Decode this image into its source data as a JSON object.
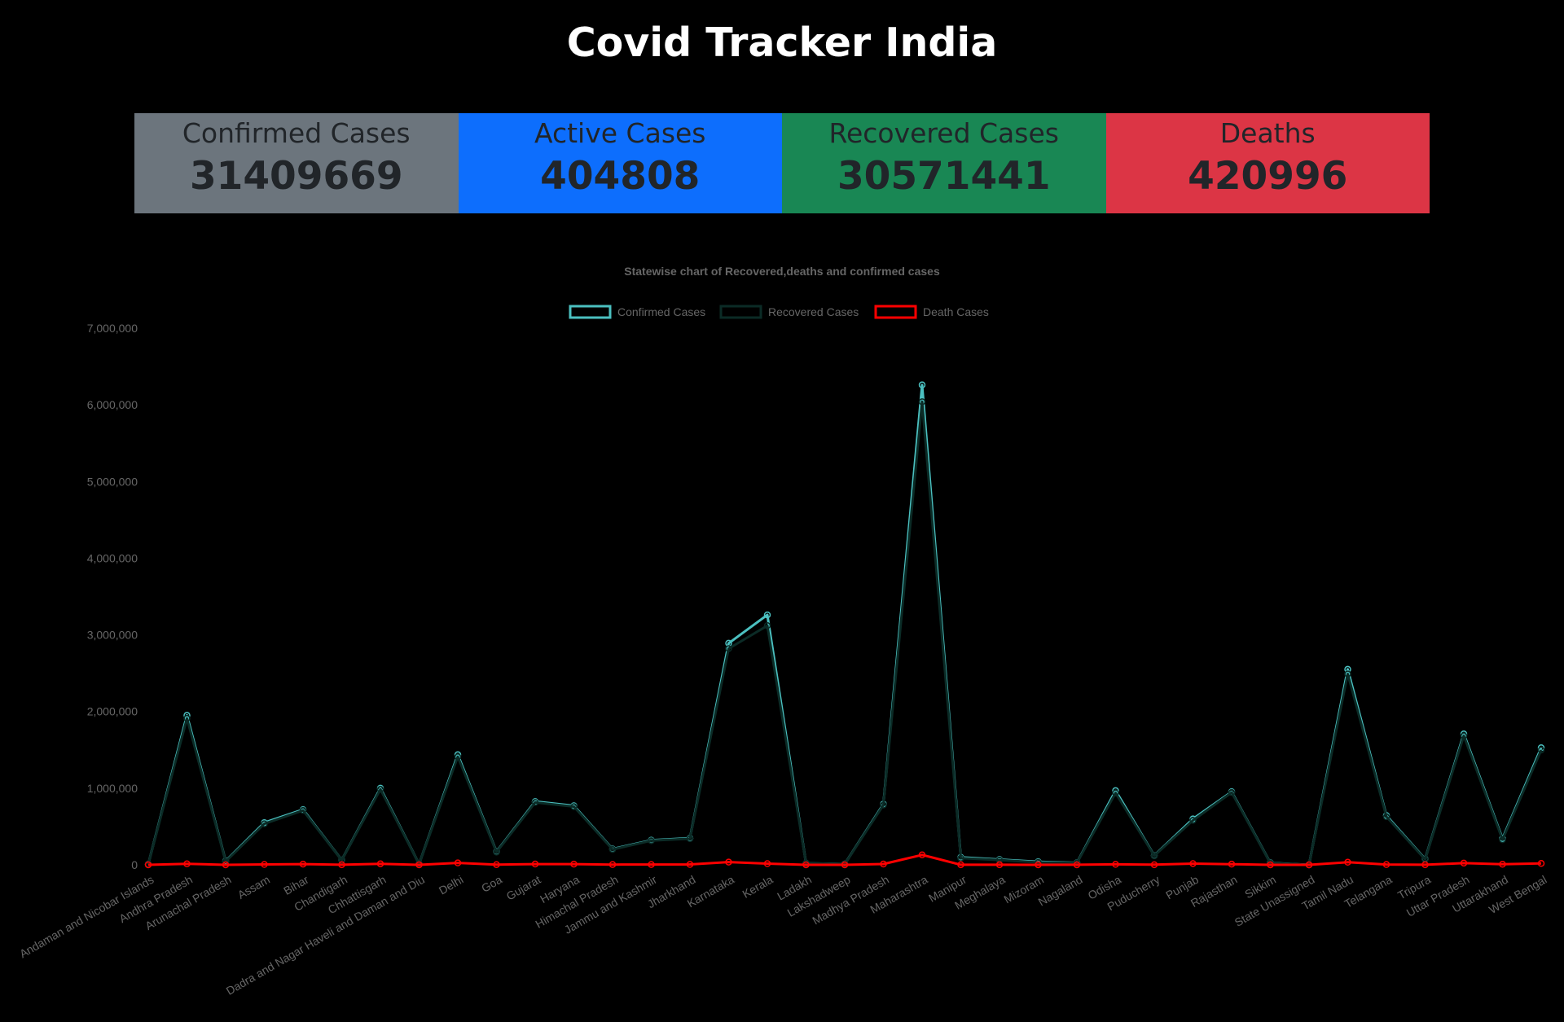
{
  "page_title": "Covid Tracker India",
  "cards": [
    {
      "label": "Confirmed Cases",
      "value": "31409669",
      "color": "#6c757d"
    },
    {
      "label": "Active Cases",
      "value": "404808",
      "color": "#0d6efd"
    },
    {
      "label": "Recovered Cases",
      "value": "30571441",
      "color": "#198754"
    },
    {
      "label": "Deaths",
      "value": "420996",
      "color": "#dc3545"
    }
  ],
  "chart_data": {
    "type": "line",
    "title": "Statewise chart of Recovered,deaths and confirmed cases",
    "legend_position": "top",
    "grid": false,
    "ylim": [
      0,
      7000000
    ],
    "yticks": [
      "0",
      "1,000,000",
      "2,000,000",
      "3,000,000",
      "4,000,000",
      "5,000,000",
      "6,000,000",
      "7,000,000"
    ],
    "categories": [
      "Andaman and Nicobar Islands",
      "Andhra Pradesh",
      "Arunachal Pradesh",
      "Assam",
      "Bihar",
      "Chandigarh",
      "Chhattisgarh",
      "Dadra and Nagar Haveli and Daman and Diu",
      "Delhi",
      "Goa",
      "Gujarat",
      "Haryana",
      "Himachal Pradesh",
      "Jammu and Kashmir",
      "Jharkhand",
      "Karnataka",
      "Kerala",
      "Ladakh",
      "Lakshadweep",
      "Madhya Pradesh",
      "Maharashtra",
      "Manipur",
      "Meghalaya",
      "Mizoram",
      "Nagaland",
      "Odisha",
      "Puducherry",
      "Punjab",
      "Rajasthan",
      "Sikkim",
      "State Unassigned",
      "Tamil Nadu",
      "Telangana",
      "Tripura",
      "Uttar Pradesh",
      "Uttarakhand",
      "West Bengal"
    ],
    "series": [
      {
        "name": "Confirmed Cases",
        "color": "#4bc0c0",
        "values": [
          7500,
          1950000,
          50000,
          550000,
          720000,
          62000,
          1000000,
          10600,
          1436000,
          171000,
          825000,
          770000,
          206000,
          321000,
          347000,
          2890000,
          3260000,
          20300,
          10100,
          792000,
          6260000,
          98000,
          69000,
          40000,
          27000,
          968000,
          121000,
          599000,
          953000,
          26000,
          0,
          2550000,
          642000,
          75000,
          1708000,
          342000,
          1527000
        ]
      },
      {
        "name": "Recovered Cases",
        "color": "#0b2b26",
        "values": [
          7300,
          1910000,
          45000,
          535000,
          710000,
          61000,
          985000,
          10500,
          1410000,
          166000,
          814000,
          759000,
          201000,
          315000,
          341000,
          2820000,
          3120000,
          20000,
          9900,
          781000,
          6040000,
          88000,
          63000,
          32000,
          24000,
          938000,
          118000,
          580000,
          944000,
          22000,
          0,
          2490000,
          628000,
          70000,
          1684000,
          328000,
          1498000
        ]
      },
      {
        "name": "Death Cases",
        "color": "#ff0000",
        "values": [
          129,
          13300,
          250,
          5200,
          9600,
          811,
          13500,
          4,
          25050,
          3150,
          10076,
          9600,
          3500,
          4370,
          5130,
          36400,
          15500,
          207,
          50,
          10500,
          130000,
          1500,
          1150,
          160,
          543,
          6500,
          1800,
          16300,
          8950,
          330,
          0,
          34000,
          3780,
          740,
          22700,
          7360,
          18000
        ]
      }
    ]
  }
}
